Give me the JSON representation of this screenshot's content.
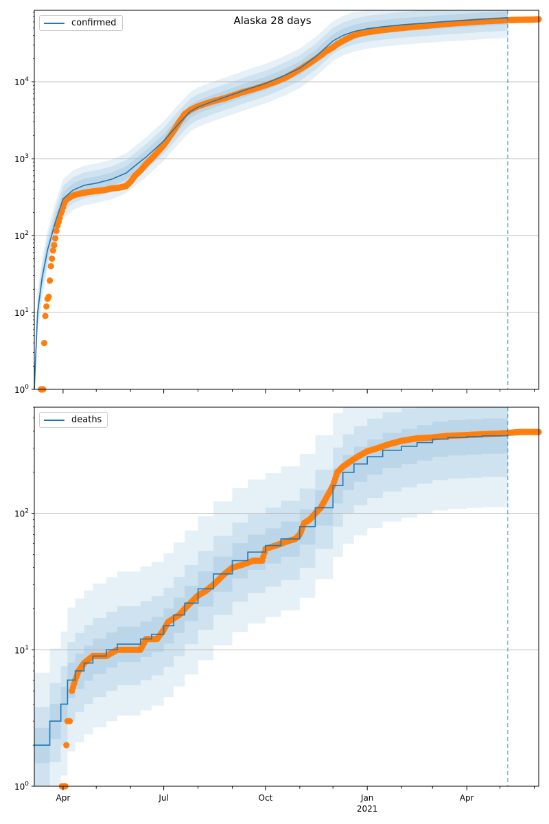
{
  "figure": {
    "title": "Alaska 28 days"
  },
  "colors": {
    "model": "#1f77b4",
    "observed": "#ff7f0e",
    "band": "#1f77b4",
    "grid": "#b0b0b0",
    "vline": "#1f77b4"
  },
  "chart_data": [
    {
      "type": "line",
      "title": "Alaska 28 days",
      "legend": [
        "confirmed"
      ],
      "legend_placement": "top-left",
      "y_scale": "log",
      "ylim": [
        1,
        85000
      ],
      "xlim": [
        "2020-03-06",
        "2021-06-05"
      ],
      "grid": "y-major",
      "y_ticks": [
        1,
        10,
        100,
        1000,
        10000
      ],
      "y_tick_labels": [
        "10^0",
        "10^1",
        "10^2",
        "10^3",
        "10^4"
      ],
      "forecast_start": "2021-05-08",
      "series": [
        {
          "name": "confirmed",
          "kind": "model_line",
          "x": [
            "2020-03-06",
            "2020-03-09",
            "2020-03-13",
            "2020-03-18",
            "2020-03-25",
            "2020-04-01",
            "2020-04-10",
            "2020-04-20",
            "2020-05-01",
            "2020-05-15",
            "2020-05-28",
            "2020-06-06",
            "2020-06-15",
            "2020-07-01",
            "2020-07-15",
            "2020-07-25",
            "2020-08-01",
            "2020-08-15",
            "2020-09-01",
            "2020-09-15",
            "2020-10-01",
            "2020-10-15",
            "2020-11-01",
            "2020-11-15",
            "2020-12-01",
            "2020-12-10",
            "2020-12-20",
            "2021-01-01",
            "2021-01-15",
            "2021-02-01",
            "2021-02-15",
            "2021-03-01",
            "2021-03-15",
            "2021-04-01",
            "2021-04-15",
            "2021-05-01",
            "2021-05-08"
          ],
          "y": [
            1,
            10,
            28,
            65,
            150,
            300,
            390,
            450,
            480,
            540,
            650,
            830,
            1050,
            1700,
            2900,
            4100,
            4700,
            5600,
            6800,
            8000,
            9500,
            11500,
            15000,
            21000,
            34000,
            40000,
            45000,
            49000,
            52000,
            55000,
            57000,
            59000,
            61000,
            63000,
            65000,
            67000,
            68000
          ],
          "bands": [
            [
              0.82,
              1.22
            ],
            [
              0.68,
              1.47
            ],
            [
              0.55,
              1.8
            ]
          ]
        },
        {
          "name": "observed",
          "kind": "points",
          "x": [
            "2020-03-12",
            "2020-03-13",
            "2020-03-14",
            "2020-03-15",
            "2020-03-16",
            "2020-03-17",
            "2020-03-18",
            "2020-03-19",
            "2020-03-20",
            "2020-03-21",
            "2020-03-22",
            "2020-03-23",
            "2020-03-24",
            "2020-03-25",
            "2020-03-26",
            "2020-03-27",
            "2020-03-28",
            "2020-03-29",
            "2020-03-30",
            "2020-03-31",
            "2020-04-01",
            "2020-04-02",
            "2020-04-03",
            "2020-04-05",
            "2020-04-08",
            "2020-04-12",
            "2020-04-16",
            "2020-04-20",
            "2020-04-25",
            "2020-05-01",
            "2020-05-08",
            "2020-05-15",
            "2020-05-22",
            "2020-05-28",
            "2020-06-01",
            "2020-06-05",
            "2020-06-10",
            "2020-06-15",
            "2020-06-20",
            "2020-06-25",
            "2020-07-01",
            "2020-07-05",
            "2020-07-10",
            "2020-07-15",
            "2020-07-20",
            "2020-07-25",
            "2020-08-01",
            "2020-08-08",
            "2020-08-15",
            "2020-08-25",
            "2020-09-01",
            "2020-09-10",
            "2020-09-20",
            "2020-10-01",
            "2020-10-10",
            "2020-10-20",
            "2020-11-01",
            "2020-11-10",
            "2020-11-20",
            "2020-11-25",
            "2020-12-01",
            "2020-12-05",
            "2020-12-10",
            "2020-12-15",
            "2020-12-20",
            "2020-12-25",
            "2021-01-01",
            "2021-01-10",
            "2021-01-20",
            "2021-02-01",
            "2021-02-10",
            "2021-02-20",
            "2021-03-01",
            "2021-03-10",
            "2021-03-20",
            "2021-04-01",
            "2021-04-10",
            "2021-04-20",
            "2021-05-01",
            "2021-05-10",
            "2021-05-20",
            "2021-06-01",
            "2021-06-05"
          ],
          "y": [
            1,
            1,
            1,
            4,
            9,
            12,
            15,
            16,
            26,
            40,
            50,
            64,
            75,
            92,
            115,
            135,
            150,
            170,
            195,
            210,
            235,
            260,
            280,
            300,
            320,
            340,
            350,
            360,
            370,
            380,
            390,
            410,
            420,
            440,
            500,
            600,
            700,
            850,
            1000,
            1200,
            1500,
            1800,
            2300,
            3000,
            3800,
            4300,
            4800,
            5200,
            5600,
            6100,
            6600,
            7300,
            8000,
            9000,
            10000,
            11500,
            14500,
            17500,
            22000,
            25000,
            28000,
            31000,
            34000,
            37000,
            40000,
            42000,
            44000,
            46000,
            48000,
            50000,
            51500,
            53000,
            54500,
            56000,
            57500,
            59000,
            60500,
            61500,
            62500,
            63500,
            64000,
            64500,
            65000
          ]
        }
      ]
    },
    {
      "type": "line",
      "title": "",
      "legend": [
        "deaths"
      ],
      "legend_placement": "top-left",
      "y_scale": "log",
      "ylim": [
        1,
        600
      ],
      "xlim": [
        "2020-03-06",
        "2021-06-05"
      ],
      "grid": "y-major",
      "y_ticks": [
        1,
        10,
        100
      ],
      "y_tick_labels": [
        "10^0",
        "10^1",
        "10^2"
      ],
      "x_tick_labels": [
        {
          "date": "2020-04-01",
          "label": "Apr"
        },
        {
          "date": "2020-07-01",
          "label": "Jul"
        },
        {
          "date": "2020-10-01",
          "label": "Oct"
        },
        {
          "date": "2021-01-01",
          "label": "Jan"
        },
        {
          "date": "2021-04-01",
          "label": "Apr"
        }
      ],
      "x_year_label": {
        "date": "2021-01-01",
        "label": "2021"
      },
      "forecast_start": "2021-05-08",
      "series": [
        {
          "name": "deaths",
          "kind": "model_step",
          "x": [
            "2020-03-06",
            "2020-03-20",
            "2020-03-30",
            "2020-04-05",
            "2020-04-12",
            "2020-04-20",
            "2020-04-28",
            "2020-05-10",
            "2020-05-20",
            "2020-06-10",
            "2020-06-20",
            "2020-07-01",
            "2020-07-10",
            "2020-07-20",
            "2020-08-01",
            "2020-08-15",
            "2020-09-01",
            "2020-09-15",
            "2020-10-01",
            "2020-10-15",
            "2020-11-01",
            "2020-11-15",
            "2020-12-01",
            "2020-12-10",
            "2020-12-20",
            "2021-01-01",
            "2021-01-15",
            "2021-02-01",
            "2021-02-15",
            "2021-03-01",
            "2021-03-15",
            "2021-04-01",
            "2021-04-15",
            "2021-05-08"
          ],
          "y": [
            2,
            3,
            4,
            6,
            7,
            8,
            9,
            10,
            11,
            12,
            13,
            15,
            18,
            22,
            28,
            36,
            45,
            52,
            58,
            65,
            80,
            110,
            160,
            200,
            230,
            260,
            290,
            310,
            330,
            350,
            360,
            365,
            370,
            380
          ],
          "bands": [
            [
              0.74,
              1.34
            ],
            [
              0.5,
              1.9
            ],
            [
              0.3,
              3.4
            ]
          ]
        },
        {
          "name": "observed",
          "kind": "points",
          "x": [
            "2020-03-31",
            "2020-04-01",
            "2020-04-02",
            "2020-04-03",
            "2020-04-04",
            "2020-04-05",
            "2020-04-07",
            "2020-04-09",
            "2020-04-12",
            "2020-04-15",
            "2020-04-20",
            "2020-04-28",
            "2020-05-01",
            "2020-05-10",
            "2020-05-20",
            "2020-06-01",
            "2020-06-05",
            "2020-06-10",
            "2020-06-15",
            "2020-06-25",
            "2020-07-01",
            "2020-07-05",
            "2020-07-10",
            "2020-07-15",
            "2020-07-20",
            "2020-07-25",
            "2020-08-01",
            "2020-08-08",
            "2020-08-15",
            "2020-08-25",
            "2020-09-01",
            "2020-09-10",
            "2020-09-20",
            "2020-09-28",
            "2020-10-01",
            "2020-10-10",
            "2020-10-20",
            "2020-10-28",
            "2020-11-01",
            "2020-11-05",
            "2020-11-10",
            "2020-11-15",
            "2020-11-20",
            "2020-11-25",
            "2020-12-01",
            "2020-12-05",
            "2020-12-10",
            "2020-12-15",
            "2020-12-20",
            "2020-12-25",
            "2021-01-01",
            "2021-01-10",
            "2021-01-20",
            "2021-02-01",
            "2021-02-15",
            "2021-03-01",
            "2021-03-15",
            "2021-04-01",
            "2021-04-15",
            "2021-05-01",
            "2021-05-10",
            "2021-05-20",
            "2021-06-05"
          ],
          "y": [
            1,
            1,
            1,
            1,
            2,
            3,
            3,
            5,
            6,
            7,
            8,
            9,
            9,
            9,
            10,
            10,
            10,
            10,
            12,
            12,
            14,
            16,
            17,
            18,
            20,
            22,
            25,
            27,
            30,
            36,
            40,
            42,
            45,
            45,
            55,
            58,
            62,
            65,
            70,
            85,
            90,
            100,
            110,
            130,
            160,
            200,
            220,
            235,
            250,
            265,
            285,
            300,
            320,
            340,
            355,
            360,
            370,
            375,
            380,
            385,
            390,
            395,
            395
          ]
        }
      ]
    }
  ]
}
